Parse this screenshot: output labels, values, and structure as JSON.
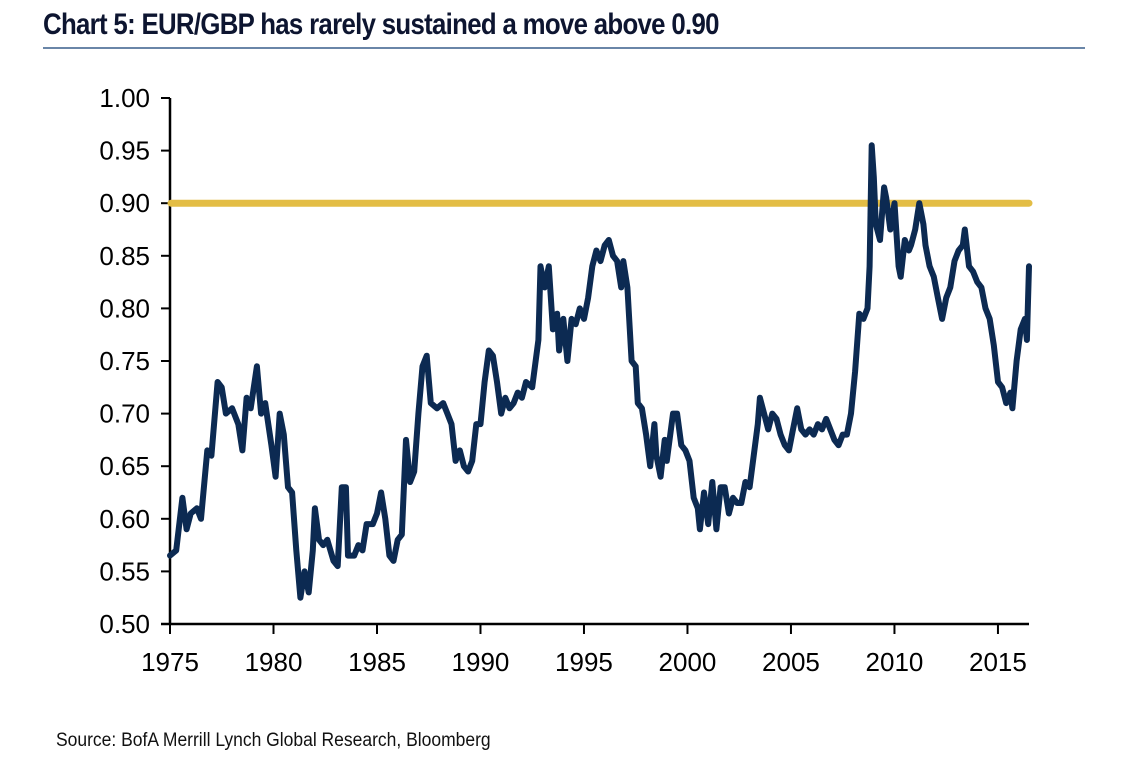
{
  "title": "Chart 5: EUR/GBP has rarely sustained a move above 0.90",
  "source": "Source: BofA Merrill Lynch Global Research, Bloomberg",
  "colors": {
    "series": "#0c2a52",
    "threshold": "#e3bd45",
    "title_rule": "#6a86a8",
    "axis": "#000000"
  },
  "chart_data": {
    "type": "line",
    "title": "Chart 5: EUR/GBP has rarely sustained a move above 0.90",
    "xlabel": "",
    "ylabel": "",
    "xlim": [
      1975,
      2016.5
    ],
    "ylim": [
      0.5,
      1.0
    ],
    "grid": false,
    "legend": "none",
    "x_ticks": [
      1975,
      1980,
      1985,
      1990,
      1995,
      2000,
      2005,
      2010,
      2015
    ],
    "x_tick_labels": [
      "1975",
      "1980",
      "1985",
      "1990",
      "1995",
      "2000",
      "2005",
      "2010",
      "2015"
    ],
    "y_ticks": [
      0.5,
      0.55,
      0.6,
      0.65,
      0.7,
      0.75,
      0.8,
      0.85,
      0.9,
      0.95,
      1.0
    ],
    "y_tick_labels": [
      "0.50",
      "0.55",
      "0.60",
      "0.65",
      "0.70",
      "0.75",
      "0.80",
      "0.85",
      "0.90",
      "0.95",
      "1.00"
    ],
    "reference_lines": [
      {
        "name": "threshold",
        "axis": "y",
        "value": 0.9
      }
    ],
    "series": [
      {
        "name": "EUR/GBP",
        "x": [
          1975.0,
          1975.3,
          1975.6,
          1975.8,
          1976.0,
          1976.3,
          1976.5,
          1976.8,
          1977.0,
          1977.3,
          1977.5,
          1977.7,
          1978.0,
          1978.3,
          1978.5,
          1978.7,
          1978.9,
          1979.2,
          1979.4,
          1979.6,
          1979.9,
          1980.1,
          1980.3,
          1980.5,
          1980.7,
          1980.9,
          1981.1,
          1981.3,
          1981.5,
          1981.7,
          1981.9,
          1982.0,
          1982.2,
          1982.4,
          1982.6,
          1982.9,
          1983.1,
          1983.3,
          1983.5,
          1983.6,
          1983.9,
          1984.1,
          1984.3,
          1984.5,
          1984.8,
          1985.0,
          1985.2,
          1985.4,
          1985.6,
          1985.8,
          1986.0,
          1986.2,
          1986.4,
          1986.6,
          1986.8,
          1987.0,
          1987.2,
          1987.4,
          1987.6,
          1987.9,
          1988.2,
          1988.4,
          1988.6,
          1988.8,
          1989.0,
          1989.2,
          1989.4,
          1989.6,
          1989.8,
          1990.0,
          1990.2,
          1990.4,
          1990.6,
          1990.8,
          1991.0,
          1991.2,
          1991.4,
          1991.6,
          1991.8,
          1992.0,
          1992.2,
          1992.5,
          1992.8,
          1992.9,
          1993.1,
          1993.3,
          1993.5,
          1993.7,
          1993.8,
          1994.0,
          1994.2,
          1994.4,
          1994.6,
          1994.8,
          1995.0,
          1995.2,
          1995.4,
          1995.6,
          1995.8,
          1996.0,
          1996.2,
          1996.4,
          1996.6,
          1996.8,
          1996.9,
          1997.1,
          1997.3,
          1997.5,
          1997.6,
          1997.8,
          1998.0,
          1998.2,
          1998.4,
          1998.5,
          1998.7,
          1998.9,
          1999.0,
          1999.3,
          1999.5,
          1999.7,
          1999.9,
          2000.1,
          2000.3,
          2000.5,
          2000.6,
          2000.8,
          2001.0,
          2001.2,
          2001.4,
          2001.6,
          2001.8,
          2002.0,
          2002.2,
          2002.4,
          2002.6,
          2002.8,
          2003.0,
          2003.2,
          2003.4,
          2003.5,
          2003.7,
          2003.9,
          2004.1,
          2004.3,
          2004.5,
          2004.7,
          2004.9,
          2005.1,
          2005.3,
          2005.5,
          2005.7,
          2005.9,
          2006.1,
          2006.3,
          2006.5,
          2006.7,
          2006.9,
          2007.1,
          2007.3,
          2007.5,
          2007.7,
          2007.9,
          2008.1,
          2008.3,
          2008.5,
          2008.7,
          2008.8,
          2008.9,
          2009.0,
          2009.1,
          2009.3,
          2009.5,
          2009.6,
          2009.8,
          2010.0,
          2010.2,
          2010.3,
          2010.5,
          2010.7,
          2010.8,
          2011.0,
          2011.2,
          2011.4,
          2011.5,
          2011.7,
          2011.9,
          2012.1,
          2012.3,
          2012.5,
          2012.7,
          2012.9,
          2013.1,
          2013.3,
          2013.4,
          2013.6,
          2013.8,
          2014.0,
          2014.2,
          2014.4,
          2014.6,
          2014.8,
          2015.0,
          2015.2,
          2015.4,
          2015.6,
          2015.7,
          2015.9,
          2016.1,
          2016.3,
          2016.4,
          2016.5
        ],
        "values": [
          0.565,
          0.57,
          0.62,
          0.59,
          0.605,
          0.61,
          0.6,
          0.665,
          0.66,
          0.73,
          0.725,
          0.7,
          0.705,
          0.69,
          0.665,
          0.715,
          0.705,
          0.745,
          0.7,
          0.71,
          0.67,
          0.64,
          0.7,
          0.68,
          0.63,
          0.625,
          0.57,
          0.525,
          0.55,
          0.53,
          0.57,
          0.61,
          0.58,
          0.575,
          0.58,
          0.56,
          0.555,
          0.63,
          0.63,
          0.565,
          0.565,
          0.575,
          0.57,
          0.595,
          0.595,
          0.605,
          0.625,
          0.6,
          0.565,
          0.56,
          0.58,
          0.585,
          0.675,
          0.635,
          0.645,
          0.7,
          0.745,
          0.755,
          0.71,
          0.705,
          0.71,
          0.7,
          0.69,
          0.655,
          0.665,
          0.65,
          0.645,
          0.655,
          0.69,
          0.69,
          0.73,
          0.76,
          0.755,
          0.73,
          0.7,
          0.715,
          0.705,
          0.71,
          0.72,
          0.715,
          0.73,
          0.725,
          0.77,
          0.84,
          0.82,
          0.84,
          0.78,
          0.795,
          0.76,
          0.79,
          0.75,
          0.79,
          0.785,
          0.8,
          0.79,
          0.81,
          0.84,
          0.855,
          0.845,
          0.86,
          0.865,
          0.85,
          0.845,
          0.82,
          0.845,
          0.82,
          0.75,
          0.745,
          0.71,
          0.705,
          0.68,
          0.65,
          0.69,
          0.66,
          0.64,
          0.675,
          0.655,
          0.7,
          0.7,
          0.67,
          0.665,
          0.655,
          0.62,
          0.61,
          0.59,
          0.625,
          0.595,
          0.635,
          0.59,
          0.63,
          0.63,
          0.605,
          0.62,
          0.615,
          0.615,
          0.635,
          0.63,
          0.66,
          0.69,
          0.715,
          0.7,
          0.685,
          0.7,
          0.695,
          0.68,
          0.67,
          0.665,
          0.685,
          0.705,
          0.685,
          0.68,
          0.685,
          0.68,
          0.69,
          0.685,
          0.695,
          0.685,
          0.675,
          0.67,
          0.68,
          0.68,
          0.7,
          0.74,
          0.795,
          0.79,
          0.8,
          0.84,
          0.955,
          0.925,
          0.88,
          0.865,
          0.915,
          0.905,
          0.875,
          0.9,
          0.84,
          0.83,
          0.865,
          0.855,
          0.86,
          0.875,
          0.9,
          0.88,
          0.86,
          0.84,
          0.83,
          0.81,
          0.79,
          0.81,
          0.82,
          0.845,
          0.855,
          0.86,
          0.875,
          0.84,
          0.835,
          0.825,
          0.82,
          0.8,
          0.79,
          0.765,
          0.73,
          0.725,
          0.71,
          0.72,
          0.705,
          0.75,
          0.78,
          0.79,
          0.77,
          0.84
        ]
      }
    ]
  }
}
